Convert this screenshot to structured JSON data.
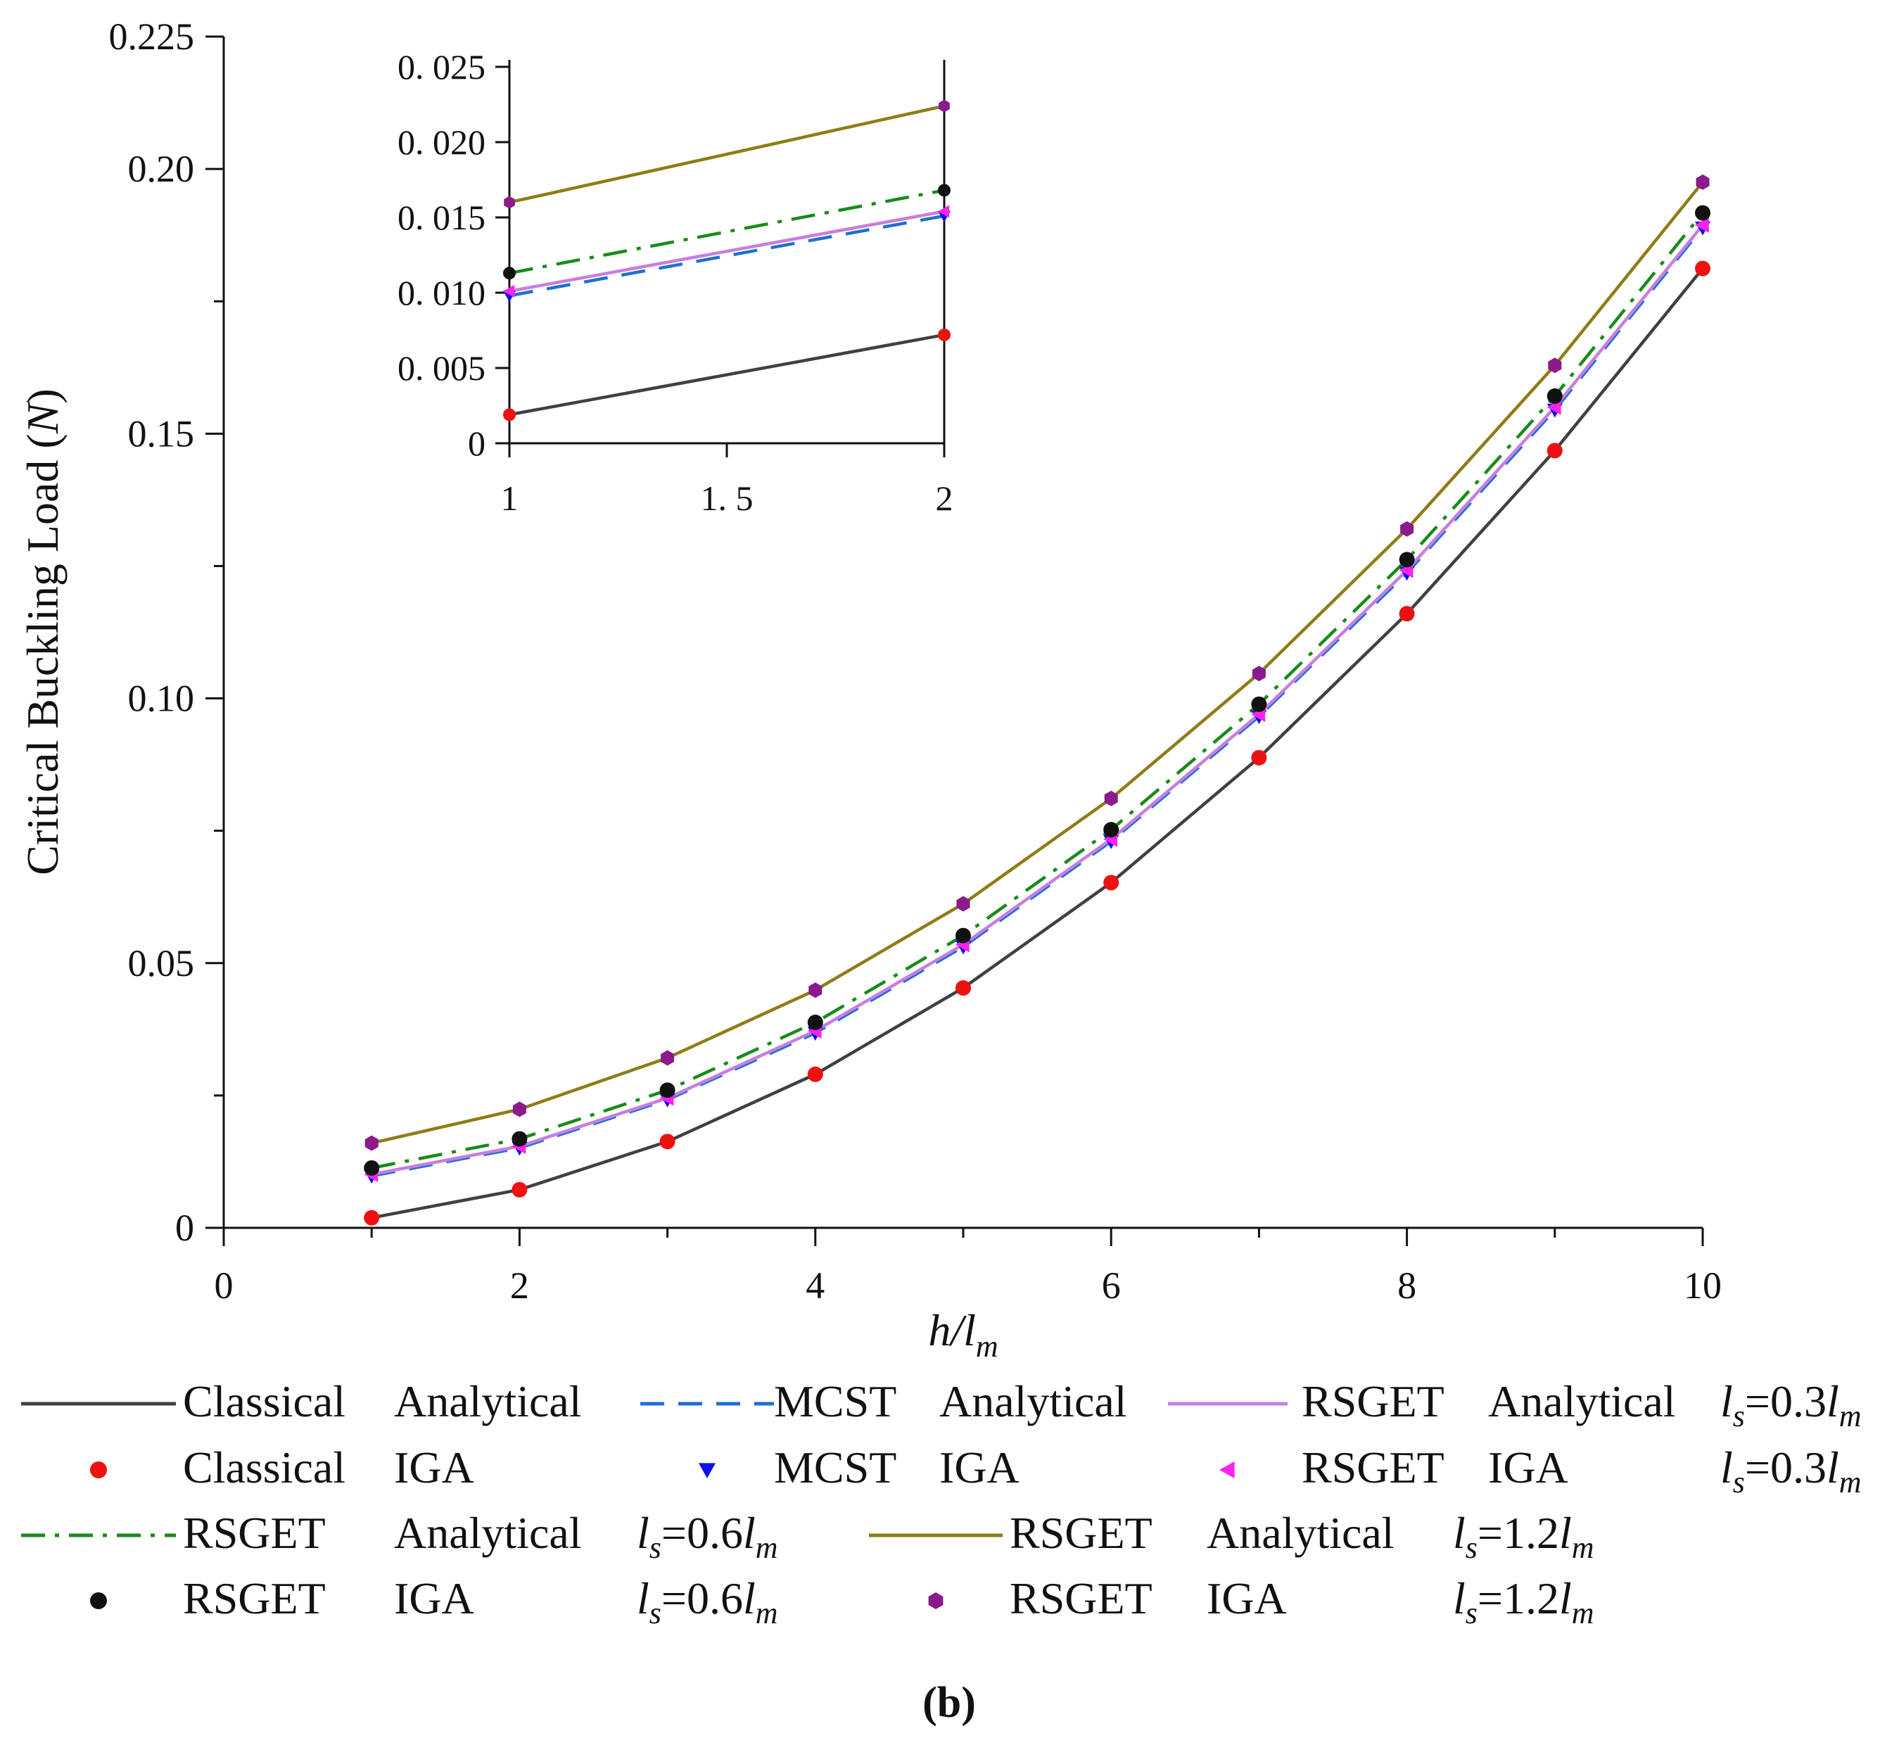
{
  "chart_data": {
    "type": "line",
    "title": "",
    "xlabel": {
      "var": "h",
      "sep": "/",
      "base": "l",
      "sub": "m"
    },
    "ylabel": {
      "prefix": "Critical Buckling Load (",
      "var": "N",
      "suffix": ")"
    },
    "xlim": [
      0,
      10
    ],
    "ylim": [
      0,
      0.225
    ],
    "x_ticks": [
      "0",
      "2",
      "4",
      "6",
      "8",
      "10"
    ],
    "y_ticks": [
      "0",
      "0.05",
      "0.10",
      "0.15",
      "0.20",
      "0.225"
    ],
    "x": [
      1,
      2,
      3,
      4,
      5,
      6,
      7,
      8,
      9,
      10
    ],
    "series": [
      {
        "id": "classical",
        "name": "Classical",
        "color": "#404040",
        "line_style": "solid",
        "marker": "circle",
        "marker_color": "#ee1111",
        "values": [
          0.0019,
          0.0072,
          0.0163,
          0.029,
          0.0453,
          0.0652,
          0.0888,
          0.116,
          0.1468,
          0.1812
        ]
      },
      {
        "id": "mcst",
        "name": "MCST",
        "color": "#1f6fd6",
        "line_style": "dashed",
        "marker": "triangle-down",
        "marker_color": "#1010ee",
        "values": [
          0.0098,
          0.0151,
          0.0242,
          0.0368,
          0.0531,
          0.073,
          0.0966,
          0.1237,
          0.1545,
          0.1889
        ]
      },
      {
        "id": "rsget03",
        "name": "RSGET 0.3",
        "color": "#c77ee0",
        "line_style": "solid",
        "marker": "triangle-left",
        "marker_color": "#ff22ee",
        "values": [
          0.0101,
          0.0154,
          0.0245,
          0.0372,
          0.0535,
          0.0734,
          0.097,
          0.1242,
          0.155,
          0.1894
        ]
      },
      {
        "id": "rsget06",
        "name": "RSGET 0.6",
        "color": "#1a8a1a",
        "line_style": "dashdot",
        "marker": "circle",
        "marker_color": "#111111",
        "values": [
          0.0113,
          0.0168,
          0.026,
          0.0388,
          0.0552,
          0.0752,
          0.0989,
          0.1262,
          0.1571,
          0.1917
        ]
      },
      {
        "id": "rsget12",
        "name": "RSGET 1.2",
        "color": "#8e7d16",
        "line_style": "solid",
        "marker": "hexagon",
        "marker_color": "#8b1a8b",
        "values": [
          0.016,
          0.0224,
          0.0321,
          0.0449,
          0.0612,
          0.0811,
          0.1047,
          0.132,
          0.1629,
          0.1975
        ]
      }
    ],
    "inset": {
      "xlim": [
        1,
        2
      ],
      "ylim": [
        0,
        0.025
      ],
      "x_ticks": [
        "1",
        "1. 5",
        "2"
      ],
      "y_ticks": [
        "0",
        "0. 005",
        "0. 010",
        "0. 015",
        "0. 020",
        "0. 025"
      ]
    },
    "legend": {
      "placement": "bottom",
      "rows": [
        [
          {
            "series": "classical",
            "kind": "line",
            "name": "Classical",
            "method": "Analytical",
            "ls": ""
          },
          {
            "series": "mcst",
            "kind": "line",
            "name": "MCST",
            "method": "Analytical",
            "ls": ""
          },
          {
            "series": "rsget03",
            "kind": "line",
            "name": "RSGET",
            "method": "Analytical",
            "ls": "0.3"
          }
        ],
        [
          {
            "series": "classical",
            "kind": "marker",
            "name": "Classical",
            "method": "IGA",
            "ls": ""
          },
          {
            "series": "mcst",
            "kind": "marker",
            "name": "MCST",
            "method": "IGA",
            "ls": ""
          },
          {
            "series": "rsget03",
            "kind": "marker",
            "name": "RSGET",
            "method": "IGA",
            "ls": "0.3"
          }
        ],
        [
          {
            "series": "rsget06",
            "kind": "line",
            "name": "RSGET",
            "method": "Analytical",
            "ls": "0.6"
          },
          {
            "series": "rsget12",
            "kind": "line",
            "name": "RSGET",
            "method": "Analytical",
            "ls": "1.2"
          }
        ],
        [
          {
            "series": "rsget06",
            "kind": "marker",
            "name": "RSGET",
            "method": "IGA",
            "ls": "0.6"
          },
          {
            "series": "rsget12",
            "kind": "marker",
            "name": "RSGET",
            "method": "IGA",
            "ls": "1.2"
          }
        ]
      ],
      "ls_label": {
        "var": "l",
        "sub": "s",
        "eq": "=",
        "base": "l",
        "base_sub": "m"
      }
    },
    "caption": "(b)"
  }
}
